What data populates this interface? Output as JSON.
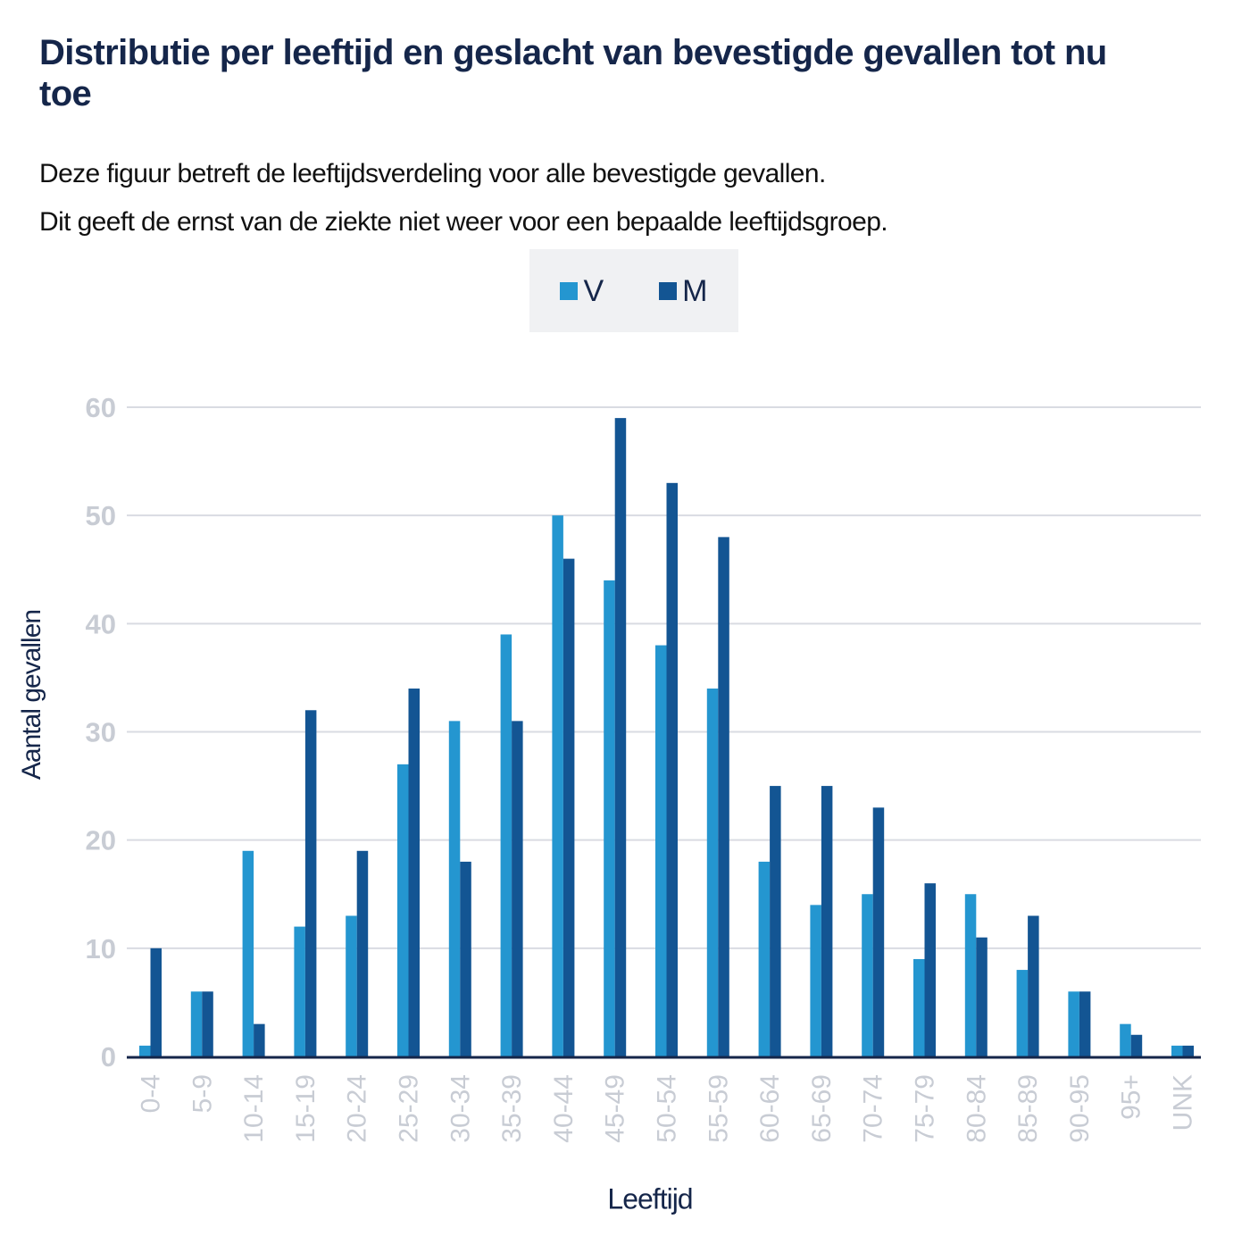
{
  "header": {
    "title": "Distributie per leeftijd en geslacht van bevestigde gevallen tot nu toe",
    "subtitle_lines": [
      "Deze figuur betreft de leeftijdsverdeling voor alle bevestigde gevallen.",
      "Dit geeft de ernst van de ziekte niet weer voor een bepaalde leeftijdsgroep."
    ]
  },
  "legend": {
    "items": [
      {
        "label": "V",
        "color": "#2496d0"
      },
      {
        "label": "M",
        "color": "#135593"
      }
    ]
  },
  "colors": {
    "gridline": "#d9dbe2",
    "axis": "#15264a",
    "tick_label": "#c8ccd4"
  },
  "chart_data": {
    "type": "bar",
    "title": "Distributie per leeftijd en geslacht van bevestigde gevallen tot nu toe",
    "xlabel": "Leeftijd",
    "ylabel": "Aantal gevallen",
    "ylim": [
      0,
      60
    ],
    "yticks": [
      0,
      10,
      20,
      30,
      40,
      50,
      60
    ],
    "grid": true,
    "legend_position": "top-center",
    "categories": [
      "0-4",
      "5-9",
      "10-14",
      "15-19",
      "20-24",
      "25-29",
      "30-34",
      "35-39",
      "40-44",
      "45-49",
      "50-54",
      "55-59",
      "60-64",
      "65-69",
      "70-74",
      "75-79",
      "80-84",
      "85-89",
      "90-95",
      "95+",
      "UNK"
    ],
    "series": [
      {
        "name": "V",
        "color": "#2496d0",
        "values": [
          1,
          6,
          19,
          12,
          13,
          27,
          31,
          39,
          50,
          44,
          38,
          34,
          18,
          14,
          15,
          9,
          15,
          8,
          6,
          3,
          1
        ]
      },
      {
        "name": "M",
        "color": "#135593",
        "values": [
          10,
          6,
          3,
          32,
          19,
          34,
          18,
          31,
          46,
          59,
          53,
          48,
          25,
          25,
          23,
          16,
          11,
          13,
          6,
          2,
          1
        ]
      }
    ]
  }
}
